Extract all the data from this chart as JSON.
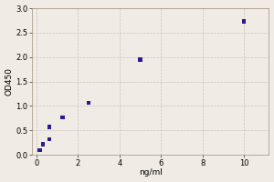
{
  "xlabel": "ng/ml",
  "ylabel": "OD450",
  "scatter_x": [
    0.156,
    0.313,
    0.625,
    0.625,
    1.25,
    2.5,
    5.0,
    10.0
  ],
  "scatter_y": [
    0.1,
    0.22,
    0.32,
    0.57,
    0.77,
    1.07,
    1.95,
    2.73
  ],
  "scatter_color": "#2b1b8f",
  "curve_color": "#cc2200",
  "xlim": [
    -0.2,
    11.2
  ],
  "ylim": [
    0.0,
    3.0
  ],
  "xticks": [
    0,
    2,
    4,
    6,
    8,
    10
  ],
  "yticks": [
    0.0,
    0.5,
    1.0,
    1.5,
    2.0,
    2.5,
    3.0
  ],
  "ytick_labels": [
    "0.0",
    "0.5",
    "1.0",
    "1.5",
    "2.0",
    "2.5",
    "3.0"
  ],
  "xtick_labels": [
    "0",
    "2",
    "4",
    "6",
    "8",
    "10"
  ],
  "background_color": "#f0ebe4",
  "grid_color": "#c8c0b8",
  "font_size": 6,
  "label_font_size": 6.5
}
